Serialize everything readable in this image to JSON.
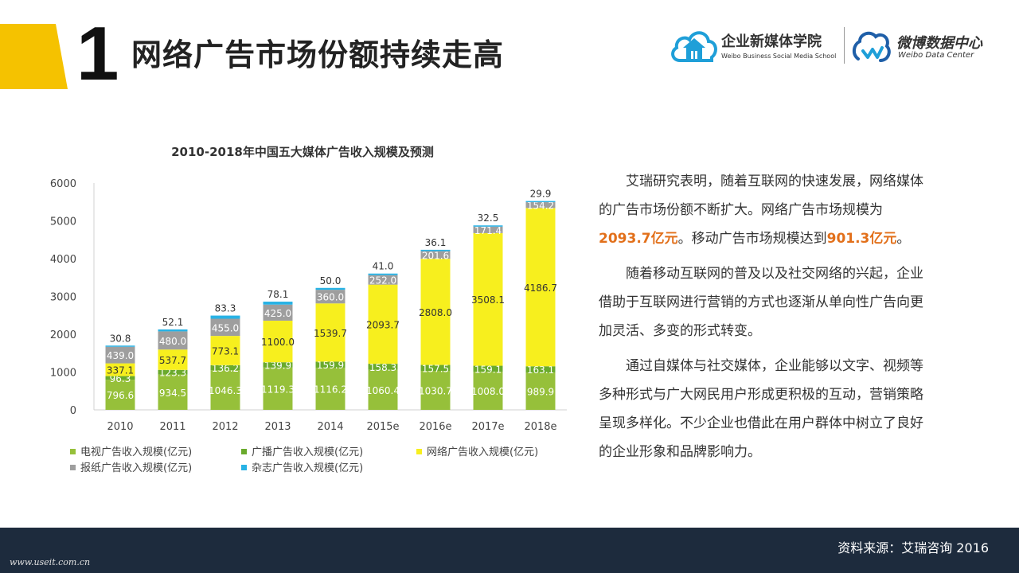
{
  "header": {
    "slide_number": "1",
    "title": "网络广告市场份额持续走高",
    "logo_left": {
      "name": "企业新媒体学院",
      "subtitle": "Weibo Business Social Media School"
    },
    "logo_right": {
      "name": "微博数据中心",
      "subtitle": "Weibo Data Center"
    }
  },
  "colors": {
    "accent": "#f5c200",
    "tv": "#96c03a",
    "radio": "#6aaa2c",
    "online": "#f7ef1e",
    "newspaper": "#9e9e9e",
    "magazine": "#27b2e5",
    "highlight": "#e2701b",
    "footer": "#1d2b3d"
  },
  "chart_data": {
    "type": "bar",
    "stacked": true,
    "title": "2010-2018年中国五大媒体广告收入规模及预测",
    "categories": [
      "2010",
      "2011",
      "2012",
      "2013",
      "2014",
      "2015e",
      "2016e",
      "2017e",
      "2018e"
    ],
    "ylim": [
      0,
      6000
    ],
    "yticks": [
      0,
      1000,
      2000,
      3000,
      4000,
      5000,
      6000
    ],
    "grid": false,
    "legend_position": "bottom",
    "series": [
      {
        "name": "电视广告收入规模(亿元)",
        "color": "#96c03a",
        "label_color": "#ffffff",
        "values": [
          796.6,
          934.5,
          1046.3,
          1119.3,
          1116.2,
          1060.4,
          1030.7,
          1008.0,
          989.9
        ],
        "labels": [
          "796.6",
          "934.5",
          "1046.3",
          "1119.3",
          "1116.2",
          "1060.4",
          "1030.7",
          "1008.0",
          "989.9"
        ]
      },
      {
        "name": "广播广告收入规模(亿元)",
        "color": "#6aaa2c",
        "label_color": "#ffffff",
        "values": [
          96.3,
          123.3,
          136.2,
          139.9,
          159.9,
          158.3,
          157.5,
          159.1,
          163.1
        ],
        "labels": [
          "96.3",
          "123.3",
          "136.2",
          "139.9",
          "159.9",
          "158.3",
          "157.5",
          "159.1",
          "163.1"
        ]
      },
      {
        "name": "网络广告收入规模(亿元)",
        "color": "#f7ef1e",
        "label_color": "#333333",
        "values": [
          337.1,
          537.7,
          773.1,
          1100.0,
          1539.7,
          2093.7,
          2808.0,
          3508.1,
          4186.7
        ],
        "labels": [
          "337.1",
          "537.7",
          "773.1",
          "1100.0",
          "1539.7",
          "2093.7",
          "2808.0",
          "3508.1",
          "4186.7"
        ]
      },
      {
        "name": "报纸广告收入规模(亿元)",
        "color": "#9e9e9e",
        "label_color": "#ffffff",
        "values": [
          439.0,
          480.0,
          455.0,
          425.0,
          360.0,
          252.0,
          201.6,
          171.4,
          154.2
        ],
        "labels": [
          "439.0",
          "480.0",
          "455.0",
          "425.0",
          "360.0",
          "252.0",
          "201.6",
          "171.4",
          "154.2"
        ]
      },
      {
        "name": "杂志广告收入规模(亿元)",
        "color": "#27b2e5",
        "label_color": "#333333",
        "values": [
          30.8,
          52.1,
          83.3,
          78.1,
          50.0,
          41.0,
          36.1,
          32.5,
          29.9
        ],
        "labels": [
          "30.8",
          "52.1",
          "83.3",
          "78.1",
          "50.0",
          "41.0",
          "36.1",
          "32.5",
          "29.9"
        ]
      }
    ]
  },
  "body": {
    "p1_a": "艾瑞研究表明，随着互联网的快速发展，网络媒体的广告市场份额不断扩大。网络广告市场规模为",
    "p1_hl1": "2093.7亿元",
    "p1_b": "。移动广告市场规模达到",
    "p1_hl2": "901.3亿元",
    "p1_c": "。",
    "p2": "随着移动互联网的普及以及社交网络的兴起，企业借助于互联网进行营销的方式也逐渐从单向性广告向更加灵活、多变的形式转变。",
    "p3": "通过自媒体与社交媒体，企业能够以文字、视频等多种形式与广大网民用户形成更积极的互动，营销策略呈现多样化。不少企业也借此在用户群体中树立了良好的企业形象和品牌影响力。"
  },
  "footer": {
    "source": "资料来源：艾瑞咨询 2016",
    "url": "www.useit.com.cn"
  }
}
